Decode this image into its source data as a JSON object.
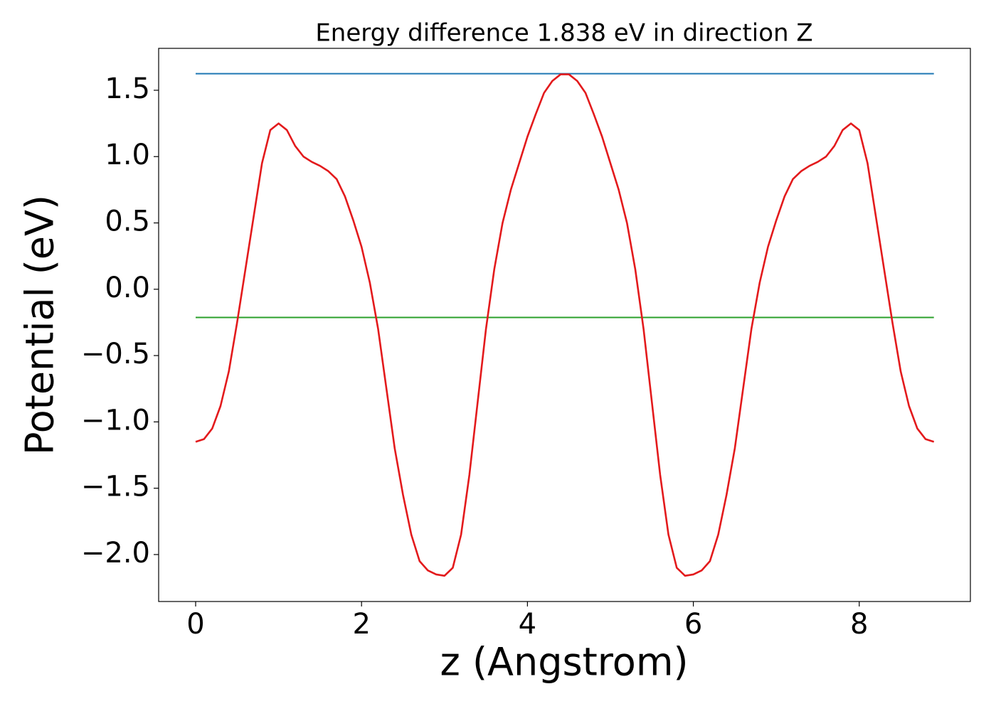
{
  "chart_data": {
    "type": "line",
    "title": "Energy difference 1.838 eV in direction Z",
    "x_label": "z (Angstrom)",
    "y_label": "Potential (eV)",
    "x": [
      0,
      0.1,
      0.2,
      0.3,
      0.4,
      0.5,
      0.6,
      0.7,
      0.8,
      0.9,
      1,
      1.1,
      1.2,
      1.3,
      1.4,
      1.5,
      1.6,
      1.7,
      1.8,
      1.9,
      2,
      2.1,
      2.2,
      2.3,
      2.4,
      2.5,
      2.6,
      2.7,
      2.8,
      2.9,
      3,
      3.1,
      3.2,
      3.3,
      3.4,
      3.5,
      3.6,
      3.7,
      3.8,
      3.9,
      4,
      4.1,
      4.2,
      4.3,
      4.4,
      4.5,
      4.6,
      4.7,
      4.8,
      4.9,
      5,
      5.1,
      5.2,
      5.3,
      5.4,
      5.5,
      5.6,
      5.7,
      5.8,
      5.9,
      6,
      6.1,
      6.2,
      6.3,
      6.4,
      6.5,
      6.6,
      6.7,
      6.8,
      6.9,
      7,
      7.1,
      7.2,
      7.3,
      7.4,
      7.5,
      7.6,
      7.7,
      7.8,
      7.9,
      8,
      8.1,
      8.2,
      8.3,
      8.4,
      8.5,
      8.6,
      8.7,
      8.8,
      8.9
    ],
    "series": [
      {
        "color": "#e31a1c",
        "values": [
          -1.15,
          -1.13,
          -1.05,
          -0.88,
          -0.62,
          -0.25,
          0.15,
          0.55,
          0.95,
          1.2,
          1.25,
          1.2,
          1.08,
          1.0,
          0.96,
          0.93,
          0.89,
          0.83,
          0.7,
          0.52,
          0.32,
          0.05,
          -0.3,
          -0.75,
          -1.2,
          -1.55,
          -1.85,
          -2.05,
          -2.12,
          -2.15,
          -2.16,
          -2.1,
          -1.85,
          -1.4,
          -0.85,
          -0.3,
          0.15,
          0.5,
          0.75,
          0.95,
          1.15,
          1.32,
          1.48,
          1.57,
          1.62,
          1.62,
          1.57,
          1.48,
          1.32,
          1.15,
          0.95,
          0.75,
          0.5,
          0.15,
          -0.3,
          -0.85,
          -1.4,
          -1.85,
          -2.1,
          -2.16,
          -2.15,
          -2.12,
          -2.05,
          -1.85,
          -1.55,
          -1.2,
          -0.75,
          -0.3,
          0.05,
          0.32,
          0.52,
          0.7,
          0.83,
          0.89,
          0.93,
          0.96,
          1.0,
          1.08,
          1.2,
          1.25,
          1.2,
          0.95,
          0.55,
          0.15,
          -0.25,
          -0.62,
          -0.88,
          -1.05,
          -1.13,
          -1.15
        ]
      }
    ],
    "hlines": [
      {
        "value": 1.625,
        "color": "#1f77b4",
        "xmin": 0,
        "xmax": 8.9
      },
      {
        "value": -0.213,
        "color": "#2ca02c",
        "xmin": 0,
        "xmax": 8.9
      }
    ],
    "xlim": [
      -0.446,
      9.34
    ],
    "ylim": [
      -2.354,
      1.816
    ],
    "xticks": [
      0,
      2,
      4,
      6,
      8
    ],
    "yticks": [
      {
        "value": -2,
        "label": "−2.0"
      },
      {
        "value": -1.5,
        "label": "−1.5"
      },
      {
        "value": -1,
        "label": "−1.0"
      },
      {
        "value": -0.5,
        "label": "−0.5"
      },
      {
        "value": 0,
        "label": "0.0"
      },
      {
        "value": 0.5,
        "label": "0.5"
      },
      {
        "value": 1,
        "label": "1.0"
      },
      1.5
    ],
    "grid": false
  }
}
